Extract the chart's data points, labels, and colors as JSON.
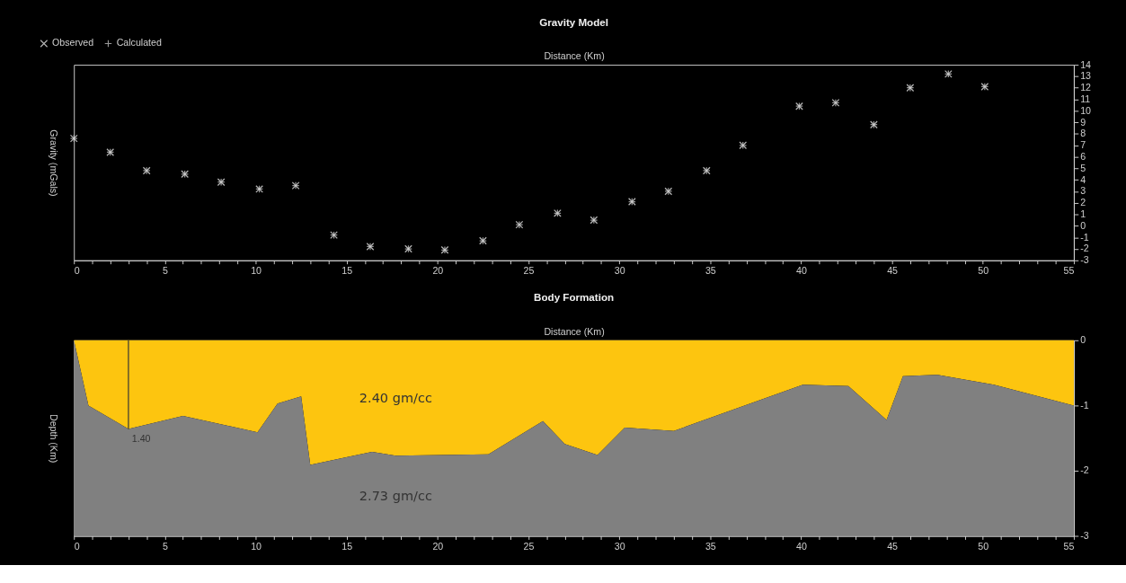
{
  "chart_data": [
    {
      "type": "scatter",
      "title": "Gravity Model",
      "xlabel": "Distance (Km)",
      "ylabel": "Gravity (mGals)",
      "legend": "top left",
      "x": [
        0,
        2.0,
        4.0,
        6.1,
        8.1,
        10.2,
        12.2,
        14.3,
        16.3,
        18.4,
        20.4,
        22.5,
        24.5,
        26.6,
        28.6,
        30.7,
        32.7,
        34.8,
        36.8,
        39.9,
        41.9,
        44.0,
        46.0,
        48.1,
        50.1
      ],
      "series": [
        {
          "name": "Observed",
          "color": "#ffffff",
          "marker": "x",
          "values": [
            7.6,
            6.4,
            4.8,
            4.5,
            3.8,
            3.2,
            3.5,
            -0.8,
            -1.8,
            -2.0,
            -2.1,
            -1.3,
            0.1,
            1.1,
            0.5,
            2.1,
            3.0,
            4.8,
            7.0,
            10.4,
            10.7,
            8.8,
            12.0,
            13.2,
            12.1
          ]
        },
        {
          "name": "Calculated",
          "color": "#d8d8d8",
          "marker": "cross",
          "values": [
            7.6,
            6.4,
            4.8,
            4.5,
            3.8,
            3.2,
            3.5,
            -0.8,
            -1.8,
            -2.0,
            -2.1,
            -1.3,
            0.1,
            1.1,
            0.5,
            2.1,
            3.0,
            4.8,
            7.0,
            10.4,
            10.7,
            8.8,
            12.0,
            13.2,
            12.1
          ]
        }
      ],
      "xlim": [
        0,
        55
      ],
      "xticks": [
        0,
        {
          "value": 1,
          "label": null
        },
        {
          "value": 2,
          "label": null
        },
        {
          "value": 3,
          "label": null
        },
        {
          "value": 4,
          "label": null
        },
        5,
        {
          "value": 6,
          "label": null
        },
        {
          "value": 7,
          "label": null
        },
        {
          "value": 8,
          "label": null
        },
        {
          "value": 9,
          "label": null
        },
        10,
        {
          "value": 11,
          "label": null
        },
        {
          "value": 12,
          "label": null
        },
        {
          "value": 13,
          "label": null
        },
        {
          "value": 14,
          "label": null
        },
        15,
        {
          "value": 16,
          "label": null
        },
        {
          "value": 17,
          "label": null
        },
        {
          "value": 18,
          "label": null
        },
        {
          "value": 19,
          "label": null
        },
        20,
        {
          "value": 21,
          "label": null
        },
        {
          "value": 22,
          "label": null
        },
        {
          "value": 23,
          "label": null
        },
        {
          "value": 24,
          "label": null
        },
        25,
        {
          "value": 26,
          "label": null
        },
        {
          "value": 27,
          "label": null
        },
        {
          "value": 28,
          "label": null
        },
        {
          "value": 29,
          "label": null
        },
        30,
        {
          "value": 31,
          "label": null
        },
        {
          "value": 32,
          "label": null
        },
        {
          "value": 33,
          "label": null
        },
        {
          "value": 34,
          "label": null
        },
        35,
        {
          "value": 36,
          "label": null
        },
        {
          "value": 37,
          "label": null
        },
        {
          "value": 38,
          "label": null
        },
        {
          "value": 39,
          "label": null
        },
        40,
        {
          "value": 41,
          "label": null
        },
        {
          "value": 42,
          "label": null
        },
        {
          "value": 43,
          "label": null
        },
        {
          "value": 44,
          "label": null
        },
        45,
        {
          "value": 46,
          "label": null
        },
        {
          "value": 47,
          "label": null
        },
        {
          "value": 48,
          "label": null
        },
        {
          "value": 49,
          "label": null
        },
        50,
        {
          "value": 51,
          "label": null
        },
        {
          "value": 52,
          "label": null
        },
        {
          "value": 53,
          "label": null
        },
        {
          "value": 54,
          "label": null
        },
        55
      ],
      "ylim": [
        -3,
        14
      ],
      "yticks": [
        -3,
        -2,
        -1,
        0,
        1,
        2,
        3,
        4,
        5,
        6,
        7,
        8,
        9,
        10,
        11,
        12,
        13,
        14
      ],
      "grid": false
    },
    {
      "type": "area",
      "title": "Body Formation",
      "xlabel": "Distance (Km)",
      "ylabel": "Depth (Km)",
      "stacked": true,
      "x": [
        0,
        0.8,
        3.0,
        6.0,
        10.1,
        11.2,
        12.5,
        13.0,
        16.4,
        17.7,
        22.8,
        25.8,
        27.0,
        28.8,
        30.3,
        33.0,
        40.1,
        42.6,
        44.7,
        45.6,
        47.5,
        50.6,
        55
      ],
      "series": [
        {
          "name": "2.40 gm/cc",
          "color": "#fdc50f",
          "values": [
            0,
            -1.0,
            -1.36,
            -1.16,
            -1.41,
            -0.97,
            -0.86,
            -1.91,
            -1.71,
            -1.77,
            -1.75,
            -1.24,
            -1.59,
            -1.76,
            -1.34,
            -1.39,
            -0.68,
            -0.7,
            -1.22,
            -0.55,
            -0.53,
            -0.68,
            -1.0
          ]
        },
        {
          "name": "2.73 gm/cc",
          "color": "#808080",
          "values": [
            -3,
            -2.0,
            -1.64,
            -1.84,
            -1.59,
            -2.03,
            -2.14,
            -1.09,
            -1.29,
            -1.23,
            -1.25,
            -1.76,
            -1.41,
            -1.24,
            -1.66,
            -1.61,
            -2.32,
            -2.3,
            -1.78,
            -2.45,
            -2.47,
            -2.32,
            -2.0
          ]
        }
      ],
      "annotations": [
        {
          "text": "1.40",
          "x": 3.0,
          "y": -1.36
        }
      ],
      "xlim": [
        0,
        55
      ],
      "xticks": [
        0,
        {
          "value": 1,
          "label": null
        },
        {
          "value": 2,
          "label": null
        },
        {
          "value": 3,
          "label": null
        },
        {
          "value": 4,
          "label": null
        },
        5,
        {
          "value": 6,
          "label": null
        },
        {
          "value": 7,
          "label": null
        },
        {
          "value": 8,
          "label": null
        },
        {
          "value": 9,
          "label": null
        },
        10,
        {
          "value": 11,
          "label": null
        },
        {
          "value": 12,
          "label": null
        },
        {
          "value": 13,
          "label": null
        },
        {
          "value": 14,
          "label": null
        },
        15,
        {
          "value": 16,
          "label": null
        },
        {
          "value": 17,
          "label": null
        },
        {
          "value": 18,
          "label": null
        },
        {
          "value": 19,
          "label": null
        },
        20,
        {
          "value": 21,
          "label": null
        },
        {
          "value": 22,
          "label": null
        },
        {
          "value": 23,
          "label": null
        },
        {
          "value": 24,
          "label": null
        },
        25,
        {
          "value": 26,
          "label": null
        },
        {
          "value": 27,
          "label": null
        },
        {
          "value": 28,
          "label": null
        },
        {
          "value": 29,
          "label": null
        },
        30,
        {
          "value": 31,
          "label": null
        },
        {
          "value": 32,
          "label": null
        },
        {
          "value": 33,
          "label": null
        },
        {
          "value": 34,
          "label": null
        },
        35,
        {
          "value": 36,
          "label": null
        },
        {
          "value": 37,
          "label": null
        },
        {
          "value": 38,
          "label": null
        },
        {
          "value": 39,
          "label": null
        },
        40,
        {
          "value": 41,
          "label": null
        },
        {
          "value": 42,
          "label": null
        },
        {
          "value": 43,
          "label": null
        },
        {
          "value": 44,
          "label": null
        },
        45,
        {
          "value": 46,
          "label": null
        },
        {
          "value": 47,
          "label": null
        },
        {
          "value": 48,
          "label": null
        },
        {
          "value": 49,
          "label": null
        },
        50,
        {
          "value": 51,
          "label": null
        },
        {
          "value": 52,
          "label": null
        },
        {
          "value": 53,
          "label": null
        },
        {
          "value": 54,
          "label": null
        },
        55
      ],
      "ylim": [
        -3,
        0
      ],
      "yticks": [
        -3,
        -2,
        -1,
        0
      ],
      "grid": false
    }
  ]
}
